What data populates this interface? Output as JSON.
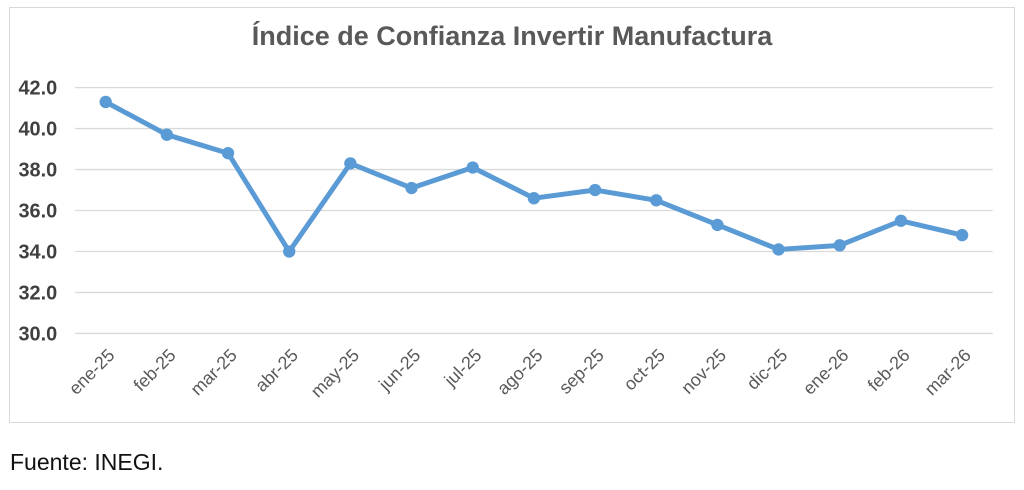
{
  "chart_data": {
    "type": "line",
    "title": "Índice de Confianza Invertir Manufactura",
    "categories": [
      "ene-25",
      "feb-25",
      "mar-25",
      "abr-25",
      "may-25",
      "jun-25",
      "jul-25",
      "ago-25",
      "sep-25",
      "oct-25",
      "nov-25",
      "dic-25",
      "ene-26",
      "feb-26",
      "mar-26"
    ],
    "values": [
      41.3,
      39.7,
      38.8,
      34.0,
      38.3,
      37.1,
      38.1,
      36.6,
      37.0,
      36.5,
      35.3,
      34.1,
      34.3,
      35.5,
      34.8
    ],
    "xlabel": "",
    "ylabel": "",
    "ylim": [
      30,
      42
    ],
    "ytick_step": 2,
    "ytick_labels": [
      "42.0",
      "40.0",
      "38.0",
      "36.0",
      "34.0",
      "32.0",
      "30.0"
    ],
    "grid": true,
    "legend": false,
    "marker": "circle"
  },
  "colors": {
    "line": "#5B9BD5",
    "marker": "#5B9BD5",
    "gridline": "#D9D9D9",
    "frame_border": "#D9D9D9",
    "title_text": "#595959",
    "y_tick_text": "#404040",
    "x_tick_text": "#595959",
    "source_text": "#111111"
  },
  "source": {
    "label": "Fuente: INEGI."
  }
}
